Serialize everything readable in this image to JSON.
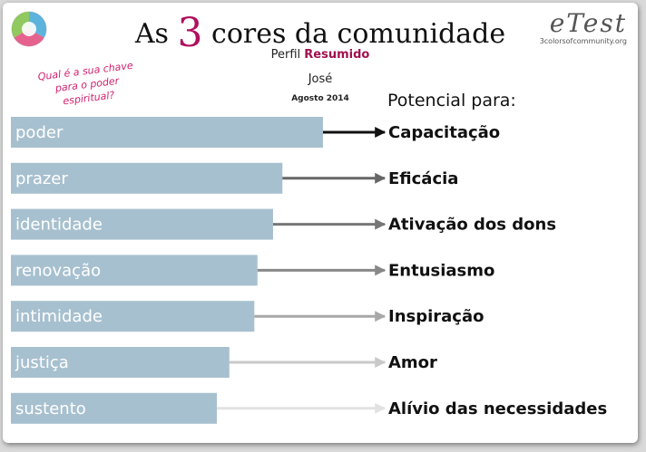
{
  "header": {
    "title_pre": "As",
    "title_num": "3",
    "title_post": "cores da comunidade",
    "subtitle_prefix": "Perfil",
    "subtitle_emphasis": "Resumido",
    "person": "José",
    "date": "Agosto 2014",
    "question": "Qual é a sua chave para o poder espiritual?",
    "brand": "eTest",
    "brand_url": "3colorsofcommunity.org",
    "potential_label": "Potencial para:"
  },
  "colors": {
    "bar": "#a7c0cf",
    "accent": "#b0105e"
  },
  "chart_data": {
    "type": "bar",
    "orientation": "horizontal",
    "categories": [
      "poder",
      "prazer",
      "identidade",
      "renovação",
      "intimidade",
      "justiça",
      "sustento"
    ],
    "values": [
      100,
      87,
      84,
      79,
      78,
      70,
      66
    ],
    "outcomes": [
      "Capacitação",
      "Eficácia",
      "Ativação dos dons",
      "Entusiasmo",
      "Inspiração",
      "Amor",
      "Alívio das necessidades"
    ],
    "arrow_colors": [
      "#111111",
      "#666666",
      "#777777",
      "#888888",
      "#a8a8a8",
      "#c9c9c9",
      "#e2e2e2"
    ],
    "xlim": [
      0,
      100
    ],
    "grid": false,
    "legend": "none"
  }
}
